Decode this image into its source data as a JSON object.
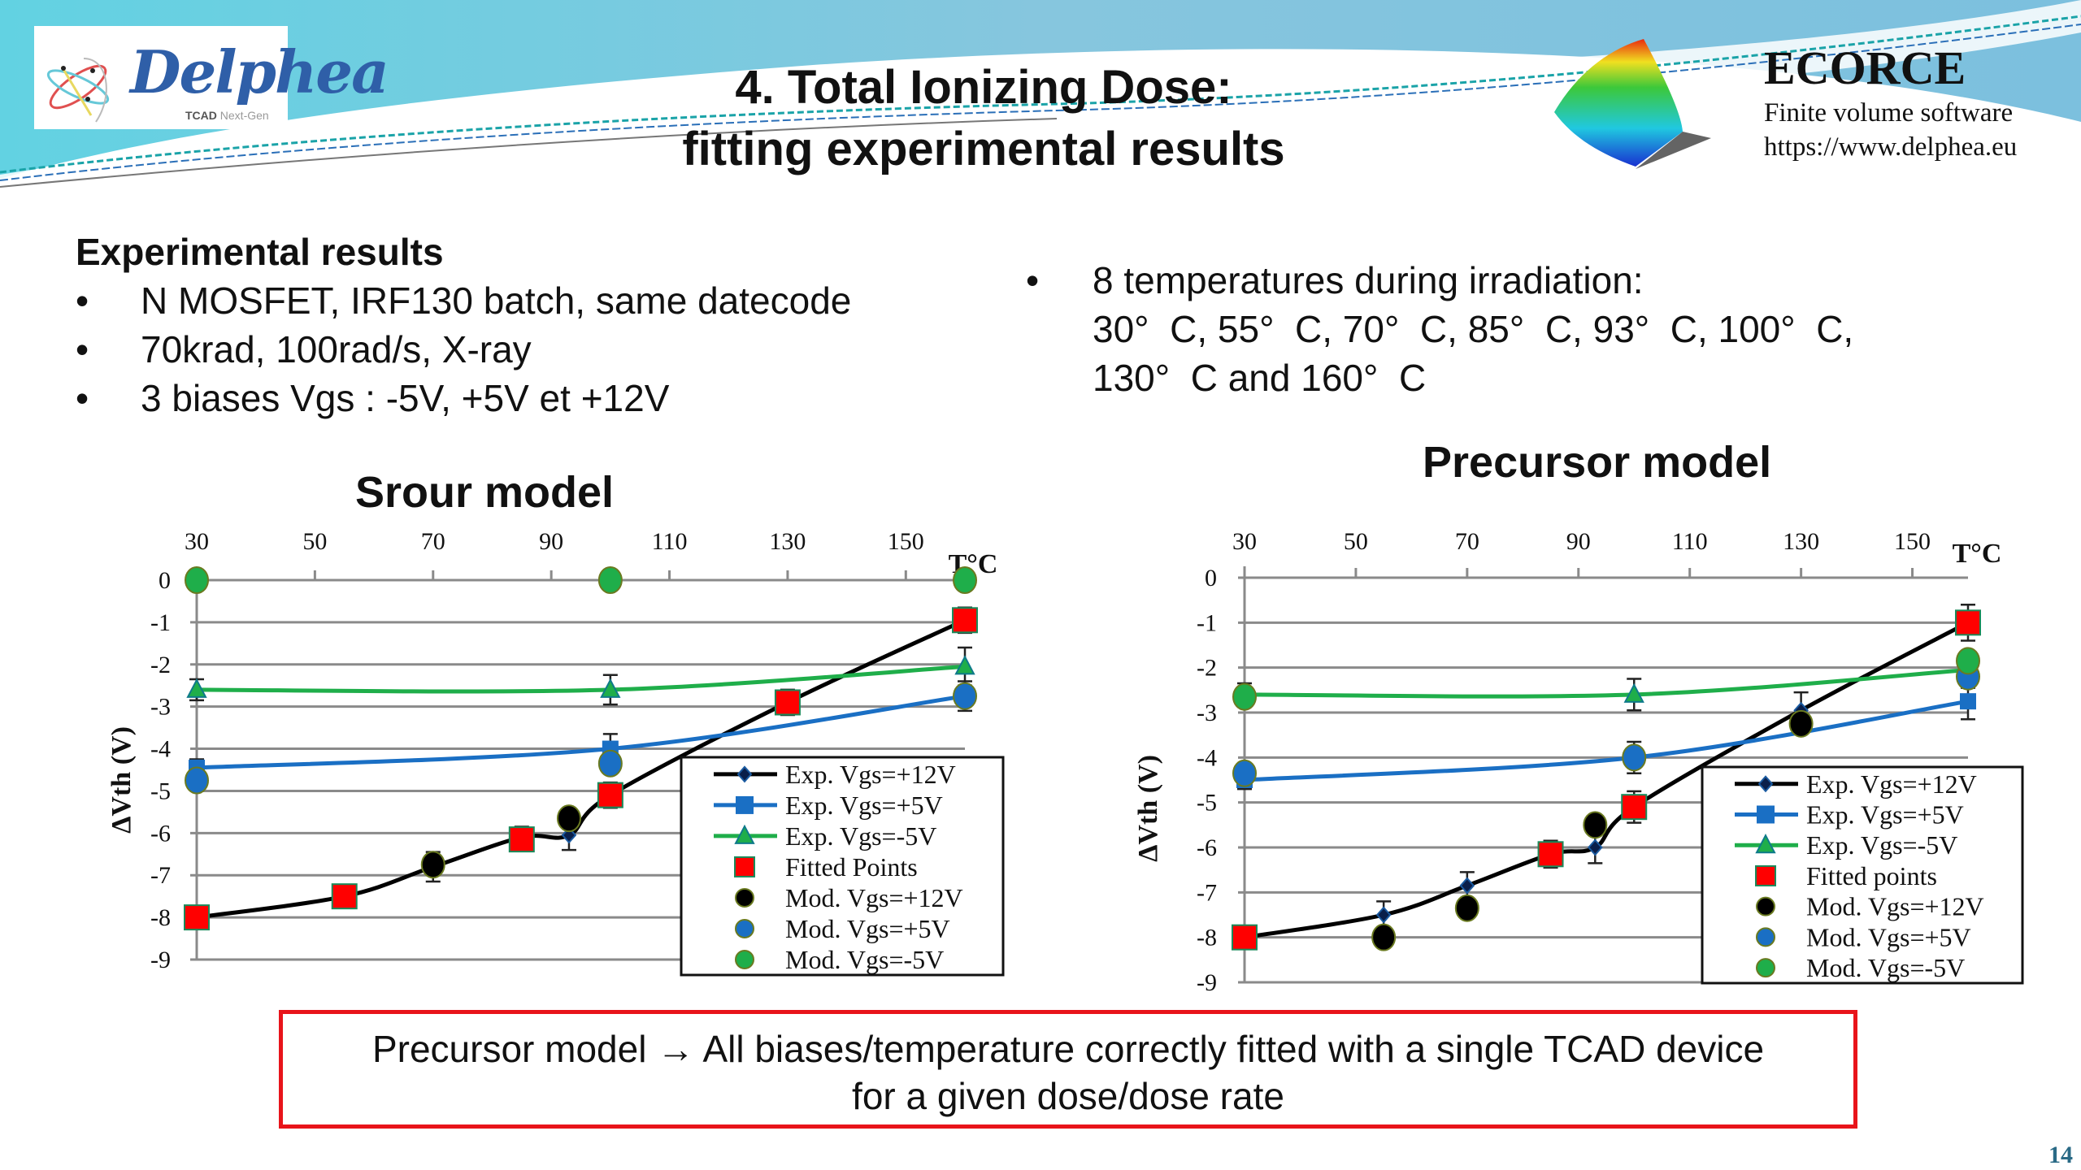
{
  "header": {
    "logo_text": "Delphea",
    "logo_tag_bold": "TCAD",
    "logo_tag_light": "Next-Gen",
    "title_line1": "4. Total Ionizing Dose:",
    "title_line2": "fitting experimental results",
    "ecorce_name": "ECORCE",
    "ecorce_sub": "Finite volume software",
    "ecorce_url": "https://www.delphea.eu"
  },
  "left_text": {
    "heading": "Experimental results",
    "bullets": [
      "N MOSFET, IRF130 batch, same datecode",
      "70krad, 100rad/s, X-ray",
      "3 biases Vgs : -5V, +5V et +12V"
    ]
  },
  "right_text": {
    "bullet": "•",
    "line1": "8 temperatures during irradiation:",
    "line2": "30°  C, 55°  C, 70°  C, 85°  C, 93°  C, 100°  C,",
    "line3": "130°  C and 160°  C"
  },
  "conclusion": {
    "line1": "Precursor model → All biases/temperature correctly fitted with a single TCAD device",
    "line2": "for a given dose/dose rate"
  },
  "page_number": "14",
  "colors": {
    "vgs12": "#000000",
    "vgs5": "#1a6fc4",
    "vgsm5": "#1fae4a",
    "fitted": "#ff0000",
    "box_border": "#e8141a"
  },
  "chart_data": [
    {
      "type": "line",
      "title": "Srour model",
      "xlabel": "T°C",
      "ylabel": "ΔVth (V)",
      "xlim": [
        30,
        160
      ],
      "ylim": [
        -9,
        0
      ],
      "x_ticks": [
        30,
        50,
        70,
        90,
        110,
        130,
        150
      ],
      "y_ticks": [
        0,
        -1,
        -2,
        -3,
        -4,
        -5,
        -6,
        -7,
        -8,
        -9
      ],
      "x_axis_position": "top",
      "grid": "horizontal",
      "legend_position": "bottom-right",
      "legend": [
        "Exp. Vgs=+12V",
        "Exp. Vgs=+5V",
        "Exp. Vgs=-5V",
        "Fitted Points",
        "Mod. Vgs=+12V",
        "Mod. Vgs=+5V",
        "Mod. Vgs=-5V"
      ],
      "series": [
        {
          "name": "Exp. Vgs=+12V",
          "kind": "line-diamond",
          "x": [
            30,
            55,
            70,
            85,
            93,
            100,
            130,
            160
          ],
          "y": [
            -8.0,
            -7.5,
            -6.8,
            -6.1,
            -6.05,
            -5.1,
            -2.9,
            -0.95
          ],
          "err": [
            0.1,
            0.15,
            0.35,
            0.25,
            0.35,
            0.3,
            0.3,
            0.3
          ]
        },
        {
          "name": "Exp. Vgs=+5V",
          "kind": "line-square",
          "x": [
            30,
            100,
            160
          ],
          "y": [
            -4.45,
            -4.0,
            -2.75
          ],
          "err": [
            0.2,
            0.35,
            0.35
          ]
        },
        {
          "name": "Exp. Vgs=-5V",
          "kind": "line-triangle",
          "x": [
            30,
            100,
            160
          ],
          "y": [
            -2.6,
            -2.6,
            -2.05
          ],
          "err": [
            0.25,
            0.35,
            0.45
          ]
        },
        {
          "name": "Fitted Points",
          "kind": "square",
          "x": [
            30,
            55,
            85,
            100,
            130,
            160
          ],
          "y": [
            -8.0,
            -7.5,
            -6.15,
            -5.1,
            -2.9,
            -0.95
          ]
        },
        {
          "name": "Mod. Vgs=+12V",
          "kind": "circle",
          "x": [
            70,
            93
          ],
          "y": [
            -6.75,
            -5.65
          ]
        },
        {
          "name": "Mod. Vgs=+5V",
          "kind": "circle",
          "x": [
            30,
            100,
            160
          ],
          "y": [
            -4.75,
            -4.35,
            -2.75
          ]
        },
        {
          "name": "Mod. Vgs=-5V",
          "kind": "circle",
          "x": [
            30,
            100,
            160
          ],
          "y": [
            0,
            0,
            0
          ]
        }
      ]
    },
    {
      "type": "line",
      "title": "Precursor model",
      "xlabel": "T°C",
      "ylabel": "ΔVth (V)",
      "xlim": [
        30,
        160
      ],
      "ylim": [
        -9,
        0
      ],
      "x_ticks": [
        30,
        50,
        70,
        90,
        110,
        130,
        150
      ],
      "y_ticks": [
        0,
        -1,
        -2,
        -3,
        -4,
        -5,
        -6,
        -7,
        -8,
        -9
      ],
      "x_axis_position": "top",
      "grid": "horizontal",
      "legend_position": "bottom-right",
      "legend": [
        "Exp. Vgs=+12V",
        "Exp. Vgs=+5V",
        "Exp. Vgs=-5V",
        "Fitted points",
        "Mod. Vgs=+12V",
        "Mod. Vgs=+5V",
        "Mod. Vgs=-5V"
      ],
      "series": [
        {
          "name": "Exp. Vgs=+12V",
          "kind": "line-diamond",
          "x": [
            30,
            55,
            70,
            85,
            93,
            100,
            130,
            160
          ],
          "y": [
            -8.0,
            -7.5,
            -6.85,
            -6.15,
            -6.0,
            -5.1,
            -2.95,
            -1.0
          ],
          "err": [
            0.1,
            0.3,
            0.3,
            0.3,
            0.35,
            0.35,
            0.4,
            0.4
          ]
        },
        {
          "name": "Exp. Vgs=+5V",
          "kind": "line-square",
          "x": [
            30,
            100,
            160
          ],
          "y": [
            -4.5,
            -4.0,
            -2.75
          ],
          "err": [
            0.2,
            0.35,
            0.4
          ]
        },
        {
          "name": "Exp. Vgs=-5V",
          "kind": "line-triangle",
          "x": [
            30,
            100,
            160
          ],
          "y": [
            -2.6,
            -2.6,
            -2.05
          ],
          "err": [
            0.25,
            0.35,
            0.4
          ]
        },
        {
          "name": "Fitted points",
          "kind": "square",
          "x": [
            30,
            85,
            100,
            160
          ],
          "y": [
            -8.0,
            -6.15,
            -5.1,
            -1.0
          ]
        },
        {
          "name": "Mod. Vgs=+12V",
          "kind": "circle",
          "x": [
            55,
            70,
            93,
            130
          ],
          "y": [
            -8.0,
            -7.35,
            -5.5,
            -3.25
          ]
        },
        {
          "name": "Mod. Vgs=+5V",
          "kind": "circle",
          "x": [
            30,
            100,
            160
          ],
          "y": [
            -4.35,
            -4.0,
            -2.2
          ]
        },
        {
          "name": "Mod. Vgs=-5V",
          "kind": "circle",
          "x": [
            30,
            160
          ],
          "y": [
            -2.65,
            -1.85
          ]
        }
      ]
    }
  ]
}
